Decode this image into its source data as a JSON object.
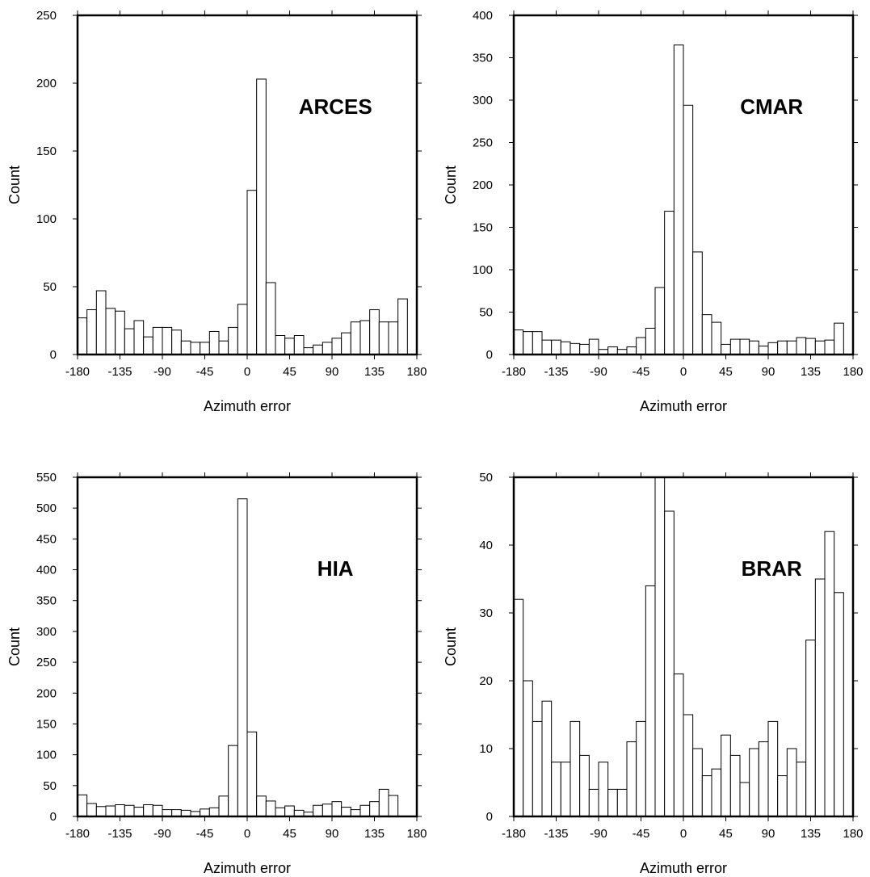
{
  "chart_data": [
    {
      "type": "bar",
      "annotation": "ARCES",
      "xlabel": "Azimuth error",
      "ylabel": "Count",
      "xlim": [
        -180,
        180
      ],
      "ylim": [
        0,
        250
      ],
      "xticks": [
        -180,
        -135,
        -90,
        -45,
        0,
        45,
        90,
        135,
        180
      ],
      "yticks": [
        0,
        50,
        100,
        150,
        200,
        250
      ],
      "bin_width": 10,
      "bin_start": -180,
      "values": [
        27,
        33,
        47,
        34,
        32,
        19,
        25,
        13,
        20,
        20,
        18,
        10,
        9,
        9,
        17,
        10,
        20,
        37,
        121,
        203,
        53,
        14,
        12,
        14,
        5,
        7,
        9,
        12,
        16,
        24,
        25,
        33,
        24,
        24,
        41
      ]
    },
    {
      "type": "bar",
      "annotation": "CMAR",
      "xlabel": "Azimuth error",
      "ylabel": "Count",
      "xlim": [
        -180,
        180
      ],
      "ylim": [
        0,
        400
      ],
      "xticks": [
        -180,
        -135,
        -90,
        -45,
        0,
        45,
        90,
        135,
        180
      ],
      "yticks": [
        0,
        50,
        100,
        150,
        200,
        250,
        300,
        350,
        400
      ],
      "bin_width": 10,
      "bin_start": -180,
      "values": [
        29,
        27,
        27,
        17,
        17,
        15,
        13,
        12,
        18,
        6,
        9,
        6,
        9,
        20,
        31,
        79,
        169,
        365,
        294,
        121,
        47,
        38,
        12,
        18,
        18,
        16,
        10,
        14,
        16,
        16,
        20,
        19,
        16,
        17,
        37
      ]
    },
    {
      "type": "bar",
      "annotation": "HIA",
      "xlabel": "Azimuth error",
      "ylabel": "Count",
      "xlim": [
        -180,
        180
      ],
      "ylim": [
        0,
        550
      ],
      "xticks": [
        -180,
        -135,
        -90,
        -45,
        0,
        45,
        90,
        135,
        180
      ],
      "yticks": [
        0,
        50,
        100,
        150,
        200,
        250,
        300,
        350,
        400,
        450,
        500,
        550
      ],
      "bin_width": 10,
      "bin_start": -180,
      "values": [
        35,
        21,
        16,
        17,
        19,
        18,
        15,
        19,
        18,
        11,
        11,
        10,
        8,
        12,
        14,
        33,
        115,
        515,
        137,
        33,
        25,
        14,
        17,
        10,
        7,
        18,
        20,
        24,
        15,
        11,
        18,
        24,
        44,
        34
      ]
    },
    {
      "type": "bar",
      "annotation": "BRAR",
      "xlabel": "Azimuth error",
      "ylabel": "Count",
      "xlim": [
        -180,
        180
      ],
      "ylim": [
        0,
        50
      ],
      "xticks": [
        -180,
        -135,
        -90,
        -45,
        0,
        45,
        90,
        135,
        180
      ],
      "yticks": [
        0,
        10,
        20,
        30,
        40,
        50
      ],
      "bin_width": 10,
      "bin_start": -180,
      "values": [
        32,
        20,
        14,
        17,
        8,
        8,
        14,
        9,
        4,
        8,
        4,
        4,
        11,
        14,
        34,
        50,
        45,
        21,
        15,
        10,
        6,
        7,
        12,
        9,
        5,
        10,
        11,
        14,
        6,
        10,
        8,
        26,
        35,
        42,
        33
      ]
    }
  ]
}
